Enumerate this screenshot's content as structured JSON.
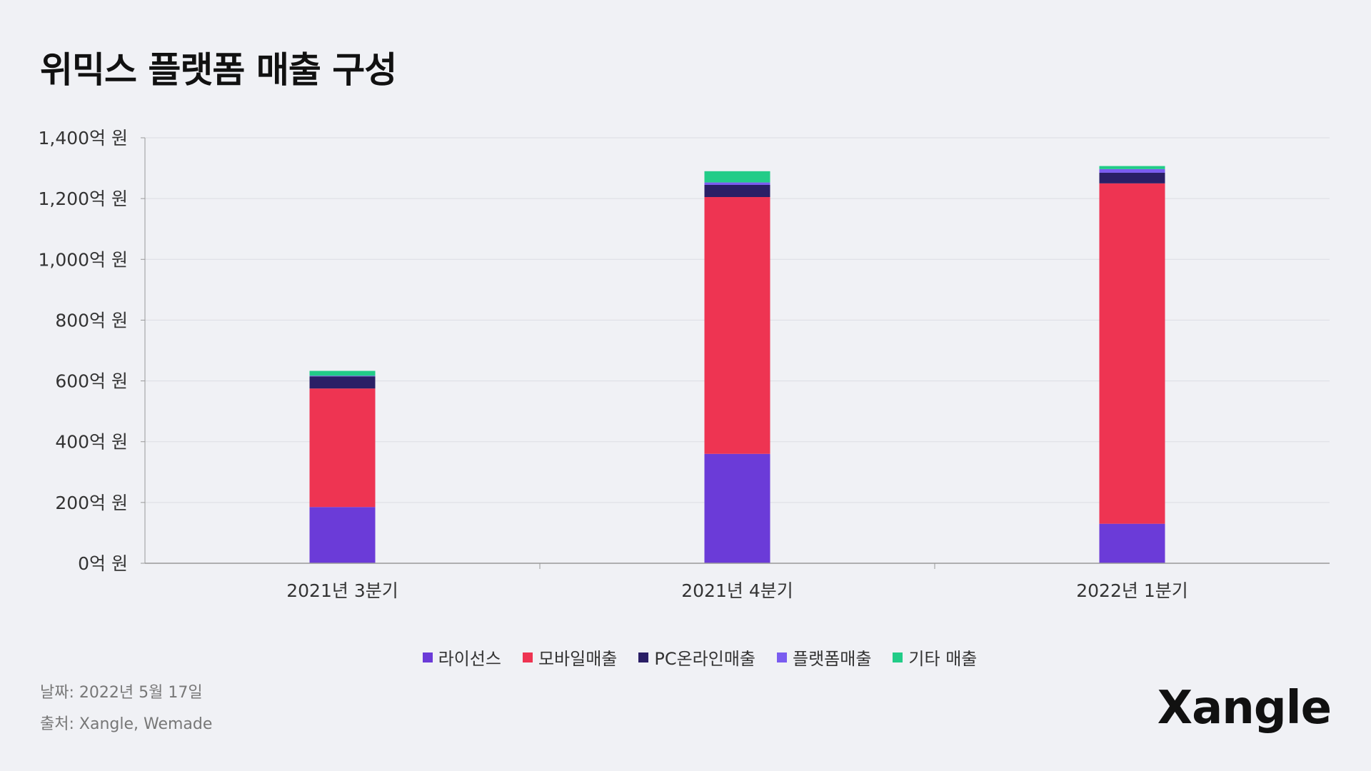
{
  "title": "위믹스 플랫폼 매출 구성",
  "footer": {
    "date": "날짜: 2022년 5월 17일",
    "source": "출처: Xangle, Wemade"
  },
  "logo": "Xangle",
  "chart_data": {
    "type": "bar",
    "stacked": true,
    "title": "위믹스 플랫폼 매출 구성",
    "xlabel": "",
    "ylabel": "",
    "categories": [
      "2021년 3분기",
      "2021년 4분기",
      "2022년 1분기"
    ],
    "yticks": [
      {
        "value": 0,
        "label": "0억 원"
      },
      {
        "value": 200,
        "label": "200억 원"
      },
      {
        "value": 400,
        "label": "400억 원"
      },
      {
        "value": 600,
        "label": "600억 원"
      },
      {
        "value": 800,
        "label": "800억 원"
      },
      {
        "value": 1000,
        "label": "1,000억 원"
      },
      {
        "value": 1200,
        "label": "1,200억 원"
      },
      {
        "value": 1400,
        "label": "1,400억 원"
      }
    ],
    "ylim": [
      0,
      1400
    ],
    "grid": true,
    "legend_position": "bottom",
    "series": [
      {
        "name": "라이선스",
        "color": "#6b3bd8",
        "values": [
          185,
          360,
          130
        ]
      },
      {
        "name": "모바일매출",
        "color": "#ee3452",
        "values": [
          390,
          845,
          1120
        ]
      },
      {
        "name": "PC온라인매출",
        "color": "#2a1f66",
        "values": [
          40,
          40,
          35
        ]
      },
      {
        "name": "플랫폼매출",
        "color": "#7a5cf0",
        "values": [
          2,
          8,
          12
        ]
      },
      {
        "name": "기타 매출",
        "color": "#22cc88",
        "values": [
          16,
          37,
          10
        ]
      }
    ]
  }
}
